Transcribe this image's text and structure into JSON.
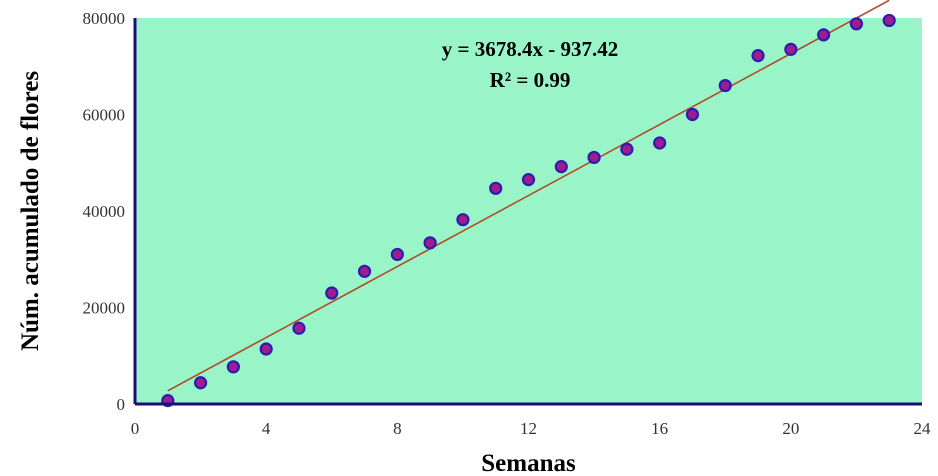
{
  "chart_data": {
    "type": "scatter",
    "xlabel": "Semanas",
    "ylabel": "Núm. acumulado  de flores",
    "xlim": [
      0,
      24
    ],
    "ylim": [
      0,
      80000
    ],
    "x_ticks": [
      0,
      4,
      8,
      12,
      16,
      20,
      24
    ],
    "y_ticks": [
      0,
      20000,
      40000,
      60000,
      80000
    ],
    "grid": false,
    "background_color": "#99f5c8",
    "axis_color": "#1a0d7a",
    "marker_fill": "#a01c8c",
    "marker_edge": "#2d1cb0",
    "trendline_color": "#b04a2a",
    "series": [
      {
        "x": [
          1,
          2,
          3,
          4,
          5,
          6,
          7,
          8,
          9,
          10,
          11,
          12,
          13,
          14,
          15,
          16,
          17,
          18,
          19,
          20,
          21,
          22,
          23
        ],
        "y": [
          700,
          4400,
          7700,
          11400,
          15700,
          23000,
          27500,
          31000,
          33400,
          38200,
          44700,
          46500,
          49200,
          51100,
          52800,
          54100,
          60000,
          66000,
          72200,
          73500,
          76500,
          78800,
          79500
        ]
      }
    ],
    "trendline": {
      "slope": 3678.4,
      "intercept": -937.42,
      "x_range": [
        1,
        23
      ],
      "equation": "y = 3678.4x - 937.42",
      "r2": "R² = 0.99"
    }
  }
}
